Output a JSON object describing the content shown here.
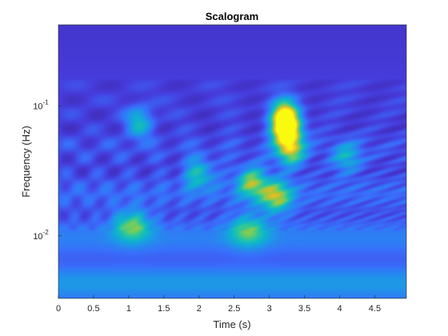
{
  "chart_data": {
    "type": "heatmap",
    "title": "Scalogram",
    "xlabel": "Time (s)",
    "ylabel": "Frequency (Hz)",
    "xlim": [
      0,
      4.95
    ],
    "ylim": [
      0.0033,
      0.42
    ],
    "yscale": "log",
    "grid": false,
    "legend": "none",
    "colormap": "parula",
    "xticks": [
      {
        "value": 0,
        "label": "0"
      },
      {
        "value": 0.5,
        "label": "0.5"
      },
      {
        "value": 1,
        "label": "1"
      },
      {
        "value": 1.5,
        "label": "1.5"
      },
      {
        "value": 2,
        "label": "2"
      },
      {
        "value": 2.5,
        "label": "2.5"
      },
      {
        "value": 3,
        "label": "3"
      },
      {
        "value": 3.5,
        "label": "3.5"
      },
      {
        "value": 4,
        "label": "4"
      },
      {
        "value": 4.5,
        "label": "4.5"
      }
    ],
    "yticks": [
      {
        "value": 0.01,
        "base": "10",
        "exp": "-2"
      },
      {
        "value": 0.1,
        "base": "10",
        "exp": "-1"
      }
    ],
    "z": {
      "description": "wavelet coefficient magnitude, normalized 0-1",
      "background_level": 0.12,
      "hotspots": [
        {
          "t": 3.25,
          "f": 0.065,
          "magnitude": 0.98
        },
        {
          "t": 3.22,
          "f": 0.085,
          "magnitude": 0.8
        },
        {
          "t": 3.3,
          "f": 0.045,
          "magnitude": 0.6
        },
        {
          "t": 3.1,
          "f": 0.02,
          "magnitude": 0.6
        },
        {
          "t": 2.75,
          "f": 0.026,
          "magnitude": 0.55
        },
        {
          "t": 1.05,
          "f": 0.012,
          "magnitude": 0.5
        },
        {
          "t": 1.15,
          "f": 0.075,
          "magnitude": 0.4
        },
        {
          "t": 2.0,
          "f": 0.03,
          "magnitude": 0.4
        },
        {
          "t": 4.1,
          "f": 0.04,
          "magnitude": 0.35
        },
        {
          "t": 2.7,
          "f": 0.011,
          "magnitude": 0.45
        }
      ]
    }
  }
}
